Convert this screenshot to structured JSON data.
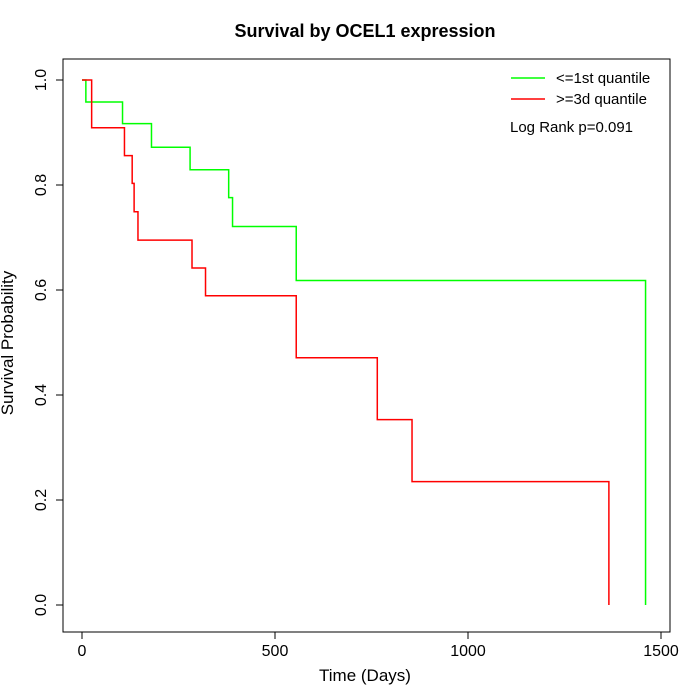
{
  "chart_data": {
    "type": "line",
    "step": true,
    "title": "Survival by OCEL1 expression",
    "xlabel": "Time (Days)",
    "ylabel": "Survival Probability",
    "xlim": [
      0,
      1500
    ],
    "ylim": [
      0,
      1
    ],
    "xticks": [
      0,
      500,
      1000,
      1500
    ],
    "yticks": [
      0.0,
      0.2,
      0.4,
      0.6,
      0.8,
      1.0
    ],
    "xtick_labels": [
      "0",
      "500",
      "1000",
      "1500"
    ],
    "ytick_labels": [
      "0.0",
      "0.2",
      "0.4",
      "0.6",
      "0.8",
      "1.0"
    ],
    "legend_position": "top-right",
    "annotation": "Log Rank p=0.091",
    "series": [
      {
        "name": "<=1st quantile",
        "color": "#00ff00",
        "x": [
          0,
          10,
          105,
          180,
          280,
          380,
          390,
          555,
          1460,
          1460
        ],
        "y": [
          1.0,
          0.958,
          0.917,
          0.872,
          0.829,
          0.776,
          0.721,
          0.618,
          0.618,
          0.0
        ]
      },
      {
        "name": ">=3d quantile",
        "color": "#ff0000",
        "x": [
          0,
          25,
          110,
          130,
          135,
          145,
          285,
          320,
          555,
          765,
          855,
          1365,
          1365
        ],
        "y": [
          1.0,
          0.909,
          0.856,
          0.803,
          0.749,
          0.695,
          0.642,
          0.589,
          0.471,
          0.353,
          0.235,
          0.235,
          0.0
        ]
      }
    ]
  }
}
